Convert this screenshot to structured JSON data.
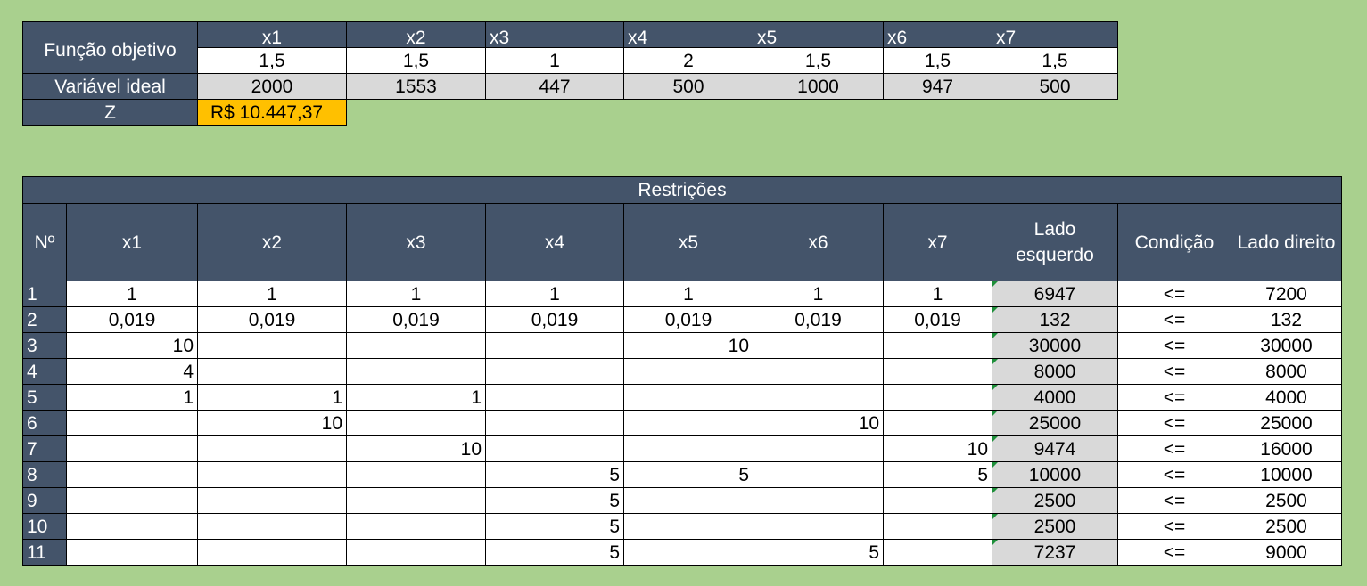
{
  "objective": {
    "label": "Função objetivo",
    "variables": [
      "x1",
      "x2",
      "x3",
      "x4",
      "x5",
      "x6",
      "x7"
    ],
    "coefficients": [
      "1,5",
      "1,5",
      "1",
      "2",
      "1,5",
      "1,5",
      "1,5"
    ],
    "ideal_label": "Variável ideal",
    "ideal_values": [
      "2000",
      "1553",
      "447",
      "500",
      "1000",
      "947",
      "500"
    ],
    "z_label": "Z",
    "z_value": "R$ 10.447,37"
  },
  "constraints": {
    "title": "Restrições",
    "headers": {
      "n": "Nº",
      "vars": [
        "x1",
        "x2",
        "x3",
        "x4",
        "x5",
        "x6",
        "x7"
      ],
      "lhs": "Lado esquerdo",
      "cond": "Condição",
      "rhs": "Lado direito"
    },
    "rows": [
      {
        "n": "1",
        "c": [
          "1",
          "1",
          "1",
          "1",
          "1",
          "1",
          "1"
        ],
        "lhs": "6947",
        "cond": "<=",
        "rhs": "7200"
      },
      {
        "n": "2",
        "c": [
          "0,019",
          "0,019",
          "0,019",
          "0,019",
          "0,019",
          "0,019",
          "0,019"
        ],
        "lhs": "132",
        "cond": "<=",
        "rhs": "132"
      },
      {
        "n": "3",
        "c": [
          "10",
          "",
          "",
          "",
          "10",
          "",
          ""
        ],
        "lhs": "30000",
        "cond": "<=",
        "rhs": "30000"
      },
      {
        "n": "4",
        "c": [
          "4",
          "",
          "",
          "",
          "",
          "",
          ""
        ],
        "lhs": "8000",
        "cond": "<=",
        "rhs": "8000"
      },
      {
        "n": "5",
        "c": [
          "1",
          "1",
          "1",
          "",
          "",
          "",
          ""
        ],
        "lhs": "4000",
        "cond": "<=",
        "rhs": "4000"
      },
      {
        "n": "6",
        "c": [
          "",
          "10",
          "",
          "",
          "",
          "10",
          ""
        ],
        "lhs": "25000",
        "cond": "<=",
        "rhs": "25000"
      },
      {
        "n": "7",
        "c": [
          "",
          "",
          "10",
          "",
          "",
          "",
          "10"
        ],
        "lhs": "9474",
        "cond": "<=",
        "rhs": "16000"
      },
      {
        "n": "8",
        "c": [
          "",
          "",
          "",
          "5",
          "5",
          "",
          "5"
        ],
        "lhs": "10000",
        "cond": "<=",
        "rhs": "10000"
      },
      {
        "n": "9",
        "c": [
          "",
          "",
          "",
          "5",
          "",
          "",
          ""
        ],
        "lhs": "2500",
        "cond": "<=",
        "rhs": "2500"
      },
      {
        "n": "10",
        "c": [
          "",
          "",
          "",
          "5",
          "",
          "",
          ""
        ],
        "lhs": "2500",
        "cond": "<=",
        "rhs": "2500"
      },
      {
        "n": "11",
        "c": [
          "",
          "",
          "",
          "5",
          "",
          "5",
          ""
        ],
        "lhs": "7237",
        "cond": "<=",
        "rhs": "9000"
      }
    ]
  }
}
